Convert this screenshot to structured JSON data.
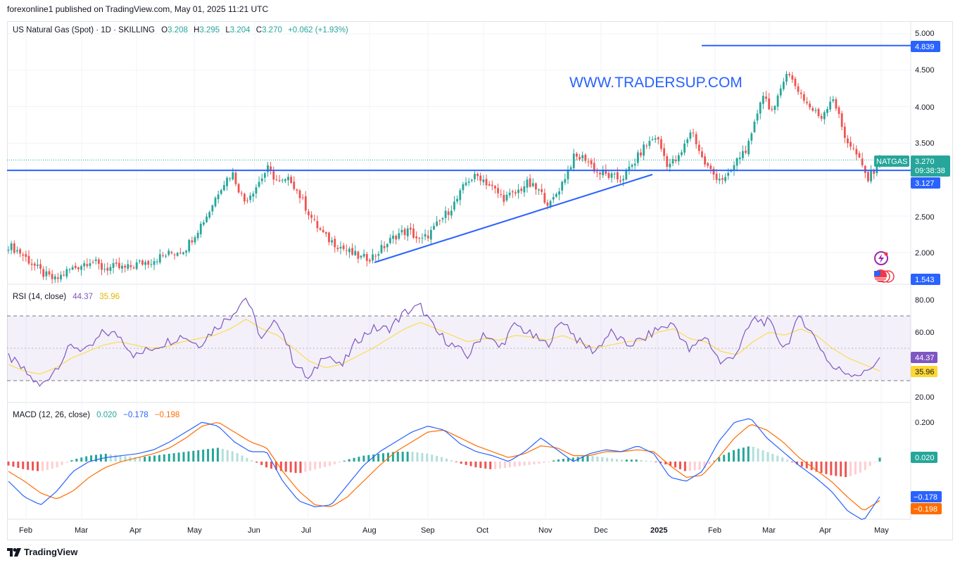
{
  "header": {
    "published_text": "forexonline1 published on TradingView.com, May 01, 2025 11:21 UTC"
  },
  "legend": {
    "symbol": "US Natural Gas (Spot) · 1D · SKILLING",
    "o_label": "O",
    "o": "3.208",
    "h_label": "H",
    "h": "3.295",
    "l_label": "L",
    "l": "3.204",
    "c_label": "C",
    "c": "3.270",
    "change": "+0.062 (+1.93%)"
  },
  "watermark": "WWW.TRADERSUP.COM",
  "price_axis": {
    "ticks": [
      "5.000",
      "4.500",
      "4.000",
      "3.500",
      "2.500",
      "2.000"
    ],
    "tag_high": "4.839",
    "tag_support": "3.127",
    "tag_price": "3.270",
    "tag_countdown": "09:38:38",
    "tag_symbol": "NATGAS",
    "tag_low": "1.543"
  },
  "rsi": {
    "title": "RSI (14, close)",
    "value": "44.37",
    "ma_value": "35.96",
    "ticks": [
      "80.00",
      "60.00",
      "20.00"
    ]
  },
  "macd": {
    "title": "MACD (12, 26, close)",
    "hist": "0.020",
    "macd": "−0.178",
    "signal": "−0.198",
    "ticks": [
      "0.200"
    ]
  },
  "time_axis": [
    "Feb",
    "Mar",
    "Apr",
    "May",
    "Jun",
    "Jul",
    "Aug",
    "Sep",
    "Oct",
    "Nov",
    "Dec",
    "2025",
    "Feb",
    "Mar",
    "Apr",
    "May"
  ],
  "footer": {
    "brand": "TradingView"
  },
  "colors": {
    "up": "#26a69a",
    "down": "#ef5350",
    "trendline": "#2962ff",
    "rsi": "#7e57c2",
    "rsi_ma": "#fdd835",
    "macd": "#2962ff",
    "signal": "#ff6d00"
  },
  "chart_data": [
    {
      "type": "candlestick",
      "title": "US Natural Gas (Spot) · 1D · SKILLING",
      "ylim": [
        1.543,
        5.0
      ],
      "x": [
        "Feb",
        "Mar",
        "Apr",
        "May",
        "Jun",
        "Jul",
        "Aug",
        "Sep",
        "Oct",
        "Nov",
        "Dec",
        "2025",
        "Feb",
        "Mar",
        "Apr",
        "May"
      ],
      "close_path": [
        2.1,
        2.0,
        1.85,
        1.7,
        1.62,
        1.75,
        1.82,
        1.9,
        1.78,
        1.8,
        1.78,
        1.85,
        1.88,
        1.95,
        2.0,
        2.05,
        2.3,
        2.55,
        2.9,
        3.1,
        2.7,
        2.9,
        3.15,
        2.95,
        3.0,
        2.7,
        2.4,
        2.2,
        2.1,
        2.0,
        1.92,
        1.95,
        2.1,
        2.25,
        2.3,
        2.15,
        2.3,
        2.5,
        2.7,
        3.0,
        3.05,
        2.9,
        2.75,
        2.8,
        2.95,
        2.85,
        2.65,
        2.95,
        3.3,
        3.3,
        3.1,
        3.05,
        3.0,
        3.2,
        3.45,
        3.6,
        3.2,
        3.3,
        3.7,
        3.25,
        3.05,
        3.0,
        3.3,
        3.5,
        4.2,
        3.9,
        4.5,
        4.25,
        4.0,
        3.85,
        4.15,
        3.6,
        3.35,
        3.0,
        3.27
      ],
      "open": 3.208,
      "high": 3.295,
      "low": 3.204,
      "close": 3.27,
      "annotations": {
        "resistance": 4.839,
        "support": 3.127,
        "low_label": 1.543
      }
    },
    {
      "type": "line",
      "title": "RSI (14, close)",
      "ylim": [
        20,
        80
      ],
      "series": [
        {
          "name": "RSI",
          "values": [
            45,
            36,
            26,
            38,
            52,
            48,
            60,
            58,
            45,
            50,
            54,
            58,
            52,
            62,
            70,
            82,
            55,
            68,
            42,
            30,
            48,
            38,
            55,
            62,
            62,
            72,
            76,
            60,
            52,
            45,
            60,
            50,
            65,
            58,
            52,
            68,
            54,
            48,
            60,
            52,
            55,
            62,
            65,
            48,
            58,
            40,
            48,
            68,
            66,
            50,
            70,
            55,
            38,
            35,
            34,
            44.37
          ],
          "last": 44.37
        },
        {
          "name": "MA",
          "values": [
            40,
            36,
            34,
            38,
            44,
            48,
            52,
            54,
            52,
            50,
            51,
            54,
            56,
            58,
            62,
            68,
            62,
            58,
            50,
            42,
            38,
            40,
            45,
            50,
            56,
            62,
            66,
            62,
            58,
            54,
            56,
            55,
            58,
            57,
            55,
            58,
            54,
            50,
            52,
            54,
            55,
            60,
            62,
            56,
            54,
            48,
            46,
            54,
            60,
            58,
            62,
            58,
            50,
            44,
            40,
            35.96
          ],
          "last": 35.96
        }
      ],
      "levels": [
        70,
        50,
        30
      ]
    },
    {
      "type": "bar",
      "title": "MACD (12, 26, close)",
      "series": [
        {
          "name": "Histogram",
          "last": 0.02,
          "values": [
            -0.02,
            -0.04,
            -0.05,
            -0.03,
            0.01,
            0.03,
            0.04,
            0.03,
            0.02,
            0.03,
            0.04,
            0.05,
            0.06,
            0.07,
            0.05,
            0.01,
            -0.03,
            -0.05,
            -0.06,
            -0.04,
            -0.02,
            0.01,
            0.03,
            0.04,
            0.05,
            0.05,
            0.04,
            0.02,
            -0.01,
            -0.03,
            -0.04,
            -0.03,
            -0.02,
            -0.01,
            0.01,
            0.02,
            0.03,
            0.02,
            0.01,
            0.01,
            0.0,
            -0.02,
            -0.05,
            -0.04,
            0.02,
            0.06,
            0.08,
            0.05,
            0.02,
            -0.02,
            -0.05,
            -0.07,
            -0.08,
            -0.05,
            0.02
          ]
        },
        {
          "name": "MACD",
          "last": -0.178,
          "values": [
            -0.1,
            -0.18,
            -0.22,
            -0.15,
            -0.05,
            0.0,
            0.02,
            0.03,
            0.04,
            0.06,
            0.1,
            0.15,
            0.2,
            0.18,
            0.1,
            0.05,
            0.05,
            -0.1,
            -0.2,
            -0.23,
            -0.22,
            -0.12,
            -0.02,
            0.05,
            0.1,
            0.15,
            0.18,
            0.16,
            0.09,
            0.05,
            0.03,
            0.0,
            0.05,
            0.12,
            0.06,
            0.0,
            0.04,
            0.06,
            0.05,
            0.08,
            0.04,
            -0.08,
            -0.1,
            -0.05,
            0.1,
            0.2,
            0.22,
            0.12,
            0.05,
            -0.02,
            -0.08,
            -0.15,
            -0.25,
            -0.3,
            -0.178
          ]
        },
        {
          "name": "Signal",
          "last": -0.198,
          "values": [
            -0.05,
            -0.1,
            -0.16,
            -0.19,
            -0.15,
            -0.08,
            -0.03,
            0.0,
            0.02,
            0.04,
            0.07,
            0.12,
            0.18,
            0.2,
            0.15,
            0.1,
            0.07,
            -0.05,
            -0.15,
            -0.22,
            -0.23,
            -0.18,
            -0.1,
            -0.02,
            0.05,
            0.1,
            0.15,
            0.16,
            0.12,
            0.08,
            0.05,
            0.02,
            0.04,
            0.08,
            0.07,
            0.03,
            0.03,
            0.05,
            0.05,
            0.06,
            0.05,
            -0.02,
            -0.08,
            -0.07,
            0.02,
            0.12,
            0.19,
            0.16,
            0.1,
            0.02,
            -0.04,
            -0.1,
            -0.18,
            -0.25,
            -0.198
          ]
        }
      ]
    }
  ]
}
